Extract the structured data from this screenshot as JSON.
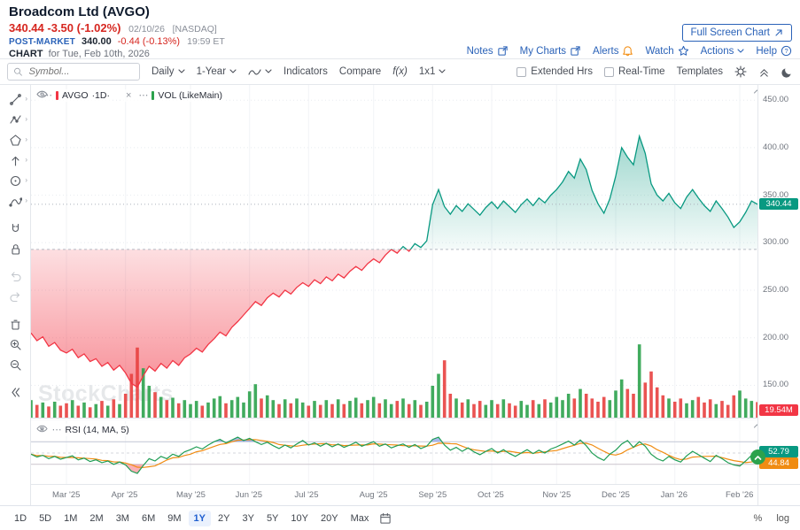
{
  "header": {
    "title": "Broadcom Ltd (AVGO)",
    "price": "340.44",
    "change": "-3.50 (-1.02%)",
    "date": "02/10/26",
    "exchange": "[NASDAQ]",
    "post_market_label": "POST-MARKET",
    "post_price": "340.00",
    "post_change": "-0.44 (-0.13%)",
    "post_time": "19:59 ET",
    "chart_word": "CHART",
    "chart_for": "for Tue, Feb 10th, 2026",
    "full_screen_button": "Full Screen Chart",
    "links": [
      {
        "label": "Notes"
      },
      {
        "label": "My Charts"
      },
      {
        "label": "Alerts"
      },
      {
        "label": "Watch"
      },
      {
        "label": "Actions"
      },
      {
        "label": "Help"
      }
    ]
  },
  "toolbar": {
    "symbol_placeholder": "Symbol...",
    "period_label": "Daily",
    "range_label": "1-Year",
    "indicators_label": "Indicators",
    "compare_label": "Compare",
    "fx_label": "f(x)",
    "layout_label": "1x1",
    "extended_hrs_label": "Extended Hrs",
    "real_time_label": "Real-Time",
    "templates_label": "Templates"
  },
  "legend": {
    "symbol": "AVGO",
    "symbol_tf": "·1D·",
    "volume": "VOL (LikeMain)",
    "rsi": "RSI (14, MA, 5)"
  },
  "axis": {
    "current_price_label": "340.44",
    "volume_label": "19.54M",
    "rsi_value_label": "52.79",
    "rsi_ma_label": "44.84"
  },
  "footer": {
    "ranges": [
      "1D",
      "5D",
      "1M",
      "2M",
      "3M",
      "6M",
      "9M",
      "1Y",
      "2Y",
      "3Y",
      "5Y",
      "10Y",
      "20Y",
      "Max"
    ],
    "active_range": "1Y",
    "scale_percent": "%",
    "scale_log": "log"
  },
  "watermark": "StockCharts",
  "colors": {
    "up": "#089981",
    "down": "#f23645",
    "vol_up": "#2ca24c",
    "vol_down": "#e8403f",
    "rsi_line": "#1f9d55",
    "rsi_ma": "#f08c12",
    "rsi_fill_high": "#3f5fd8",
    "rsi_fill_low": "#f23645",
    "accent_blue": "#2a62b8",
    "price_red": "#d6261f",
    "badge_green": "#089981",
    "badge_red": "#f23645",
    "badge_orange": "#f08c12"
  },
  "chart_data": {
    "type": "area",
    "title": "AVGO 1-Year Daily baseline area chart with volume overlay and RSI(14) panel",
    "baseline": 293,
    "last_price": 340.44,
    "price_ylim": [
      116,
      466
    ],
    "price_axis_ticks": [
      450,
      400,
      350,
      300,
      250,
      200,
      150
    ],
    "rsi_bands": [
      70,
      50,
      30
    ],
    "rsi_ma_period": 5,
    "month_ticks": [
      {
        "label": "Mar '25",
        "idx": 6
      },
      {
        "label": "Apr '25",
        "idx": 16
      },
      {
        "label": "May '25",
        "idx": 27
      },
      {
        "label": "Jun '25",
        "idx": 37
      },
      {
        "label": "Jul '25",
        "idx": 47
      },
      {
        "label": "Aug '25",
        "idx": 58
      },
      {
        "label": "Sep '25",
        "idx": 68
      },
      {
        "label": "Oct '25",
        "idx": 78
      },
      {
        "label": "Nov '25",
        "idx": 89
      },
      {
        "label": "Dec '25",
        "idx": 99
      },
      {
        "label": "Jan '26",
        "idx": 109
      },
      {
        "label": "Feb '26",
        "idx": 120
      }
    ],
    "series": [
      {
        "name": "AVGO close",
        "values": [
          205,
          197,
          201,
          191,
          195,
          187,
          184,
          188,
          179,
          183,
          175,
          178,
          170,
          174,
          166,
          171,
          163,
          152,
          148,
          160,
          170,
          165,
          173,
          168,
          176,
          171,
          179,
          183,
          189,
          185,
          193,
          199,
          206,
          202,
          211,
          217,
          224,
          231,
          238,
          234,
          242,
          247,
          243,
          250,
          246,
          253,
          258,
          254,
          261,
          257,
          264,
          260,
          267,
          263,
          270,
          275,
          271,
          278,
          283,
          279,
          287,
          293,
          289,
          296,
          291,
          299,
          295,
          302,
          340,
          356,
          338,
          330,
          339,
          333,
          341,
          335,
          329,
          337,
          343,
          336,
          344,
          338,
          332,
          340,
          346,
          339,
          347,
          342,
          350,
          356,
          364,
          375,
          368,
          388,
          377,
          355,
          341,
          331,
          346,
          370,
          400,
          390,
          382,
          412,
          394,
          362,
          350,
          344,
          352,
          342,
          336,
          348,
          356,
          347,
          339,
          333,
          344,
          336,
          327,
          316,
          322,
          332,
          344,
          340.44
        ]
      },
      {
        "name": "Volume (millions)",
        "values": [
          22,
          16,
          19,
          14,
          20,
          15,
          18,
          22,
          15,
          19,
          13,
          17,
          21,
          15,
          23,
          17,
          30,
          55,
          88,
          62,
          40,
          32,
          26,
          22,
          25,
          18,
          22,
          17,
          21,
          15,
          19,
          24,
          27,
          18,
          22,
          26,
          19,
          33,
          42,
          24,
          28,
          22,
          17,
          23,
          18,
          24,
          19,
          15,
          21,
          16,
          22,
          17,
          23,
          17,
          21,
          25,
          18,
          22,
          26,
          18,
          23,
          17,
          21,
          24,
          17,
          22,
          16,
          20,
          40,
          55,
          72,
          30,
          24,
          19,
          23,
          17,
          21,
          16,
          22,
          17,
          23,
          18,
          15,
          21,
          16,
          22,
          17,
          23,
          19,
          26,
          22,
          30,
          24,
          36,
          30,
          24,
          20,
          26,
          22,
          34,
          48,
          36,
          30,
          92,
          44,
          58,
          38,
          28,
          24,
          20,
          24,
          18,
          22,
          26,
          19,
          23,
          17,
          21,
          16,
          28,
          34,
          24,
          21,
          19.54
        ]
      },
      {
        "name": "RSI(14)",
        "values": [
          48,
          43,
          46,
          40,
          44,
          39,
          42,
          45,
          38,
          41,
          35,
          38,
          33,
          36,
          30,
          34,
          29,
          18,
          14,
          28,
          40,
          36,
          44,
          40,
          48,
          44,
          52,
          56,
          61,
          57,
          64,
          70,
          74,
          68,
          73,
          78,
          72,
          76,
          70,
          65,
          69,
          63,
          58,
          64,
          59,
          66,
          72,
          64,
          68,
          62,
          67,
          61,
          66,
          60,
          64,
          69,
          62,
          66,
          70,
          62,
          66,
          59,
          63,
          66,
          60,
          65,
          58,
          62,
          74,
          78,
          64,
          55,
          60,
          53,
          59,
          52,
          47,
          53,
          58,
          50,
          56,
          49,
          44,
          50,
          56,
          49,
          55,
          50,
          57,
          61,
          66,
          71,
          64,
          73,
          63,
          50,
          42,
          37,
          48,
          55,
          66,
          72,
          60,
          70,
          62,
          48,
          40,
          36,
          44,
          38,
          34,
          45,
          53,
          47,
          41,
          35,
          46,
          40,
          33,
          29,
          27,
          36,
          46,
          52.79
        ]
      }
    ]
  }
}
